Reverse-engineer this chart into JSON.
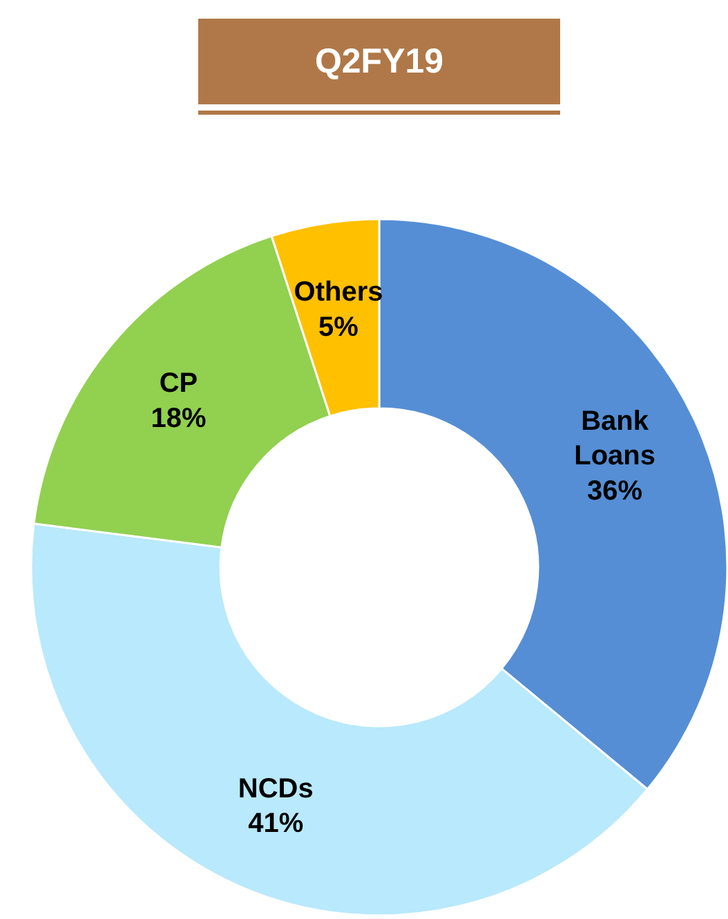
{
  "chart_data": {
    "type": "donut",
    "title": "Q2FY19",
    "categories": [
      "Bank Loans",
      "NCDs",
      "CP",
      "Others"
    ],
    "values": [
      36,
      41,
      18,
      5
    ],
    "value_labels": [
      "36%",
      "41%",
      "18%",
      "5%"
    ],
    "colors": [
      "#558ed5",
      "#b9e9fc",
      "#92d050",
      "#ffc000"
    ]
  }
}
